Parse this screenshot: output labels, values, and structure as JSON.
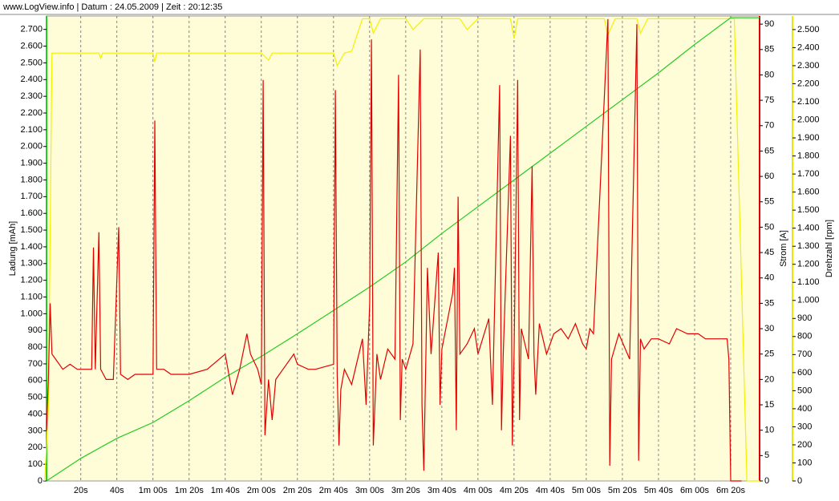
{
  "chart_data": {
    "type": "line",
    "header": "www.LogView.info   |   Datum : 24.05.2009   |   Zeit : 20:12:35",
    "ylabel": "Ladung [mAh]",
    "y2label": "Strom [A]",
    "y3label": "Drehzahl [rpm]",
    "background": "#fffcd8",
    "xlim": [
      1,
      396
    ],
    "xticks": [
      {
        "value": 20,
        "label": "20s"
      },
      {
        "value": 40,
        "label": "40s"
      },
      {
        "value": 60,
        "label": "1m 00s"
      },
      {
        "value": 80,
        "label": "1m 20s"
      },
      {
        "value": 100,
        "label": "1m 40s"
      },
      {
        "value": 120,
        "label": "2m 00s"
      },
      {
        "value": 140,
        "label": "2m 20s"
      },
      {
        "value": 160,
        "label": "2m 40s"
      },
      {
        "value": 180,
        "label": "3m 00s"
      },
      {
        "value": 200,
        "label": "3m 20s"
      },
      {
        "value": 220,
        "label": "3m 40s"
      },
      {
        "value": 240,
        "label": "4m 00s"
      },
      {
        "value": 260,
        "label": "4m 20s"
      },
      {
        "value": 280,
        "label": "4m 40s"
      },
      {
        "value": 300,
        "label": "5m 00s"
      },
      {
        "value": 320,
        "label": "5m 20s"
      },
      {
        "value": 340,
        "label": "5m 40s"
      },
      {
        "value": 360,
        "label": "6m 00s"
      },
      {
        "value": 380,
        "label": "6m 20s"
      }
    ],
    "grid": true,
    "ylim": [
      0,
      2780
    ],
    "yticks": [
      0,
      100,
      200,
      300,
      400,
      500,
      600,
      700,
      800,
      900,
      {
        "value": 1000,
        "label": "1.000"
      },
      {
        "value": 1100,
        "label": "1.100"
      },
      {
        "value": 1200,
        "label": "1.200"
      },
      {
        "value": 1300,
        "label": "1.300"
      },
      {
        "value": 1400,
        "label": "1.400"
      },
      {
        "value": 1500,
        "label": "1.500"
      },
      {
        "value": 1600,
        "label": "1.600"
      },
      {
        "value": 1700,
        "label": "1.700"
      },
      {
        "value": 1800,
        "label": "1.800"
      },
      {
        "value": 1900,
        "label": "1.900"
      },
      {
        "value": 2000,
        "label": "2.000"
      },
      {
        "value": 2100,
        "label": "2.100"
      },
      {
        "value": 2200,
        "label": "2.200"
      },
      {
        "value": 2300,
        "label": "2.300"
      },
      {
        "value": 2400,
        "label": "2.400"
      },
      {
        "value": 2500,
        "label": "2.500"
      },
      {
        "value": 2600,
        "label": "2.600"
      },
      {
        "value": 2700,
        "label": "2.700"
      }
    ],
    "y2lim": [
      0,
      91.6
    ],
    "y2ticks": [
      0,
      5,
      10,
      15,
      20,
      25,
      30,
      35,
      40,
      45,
      50,
      55,
      60,
      65,
      70,
      75,
      80,
      85,
      90
    ],
    "y3lim": [
      0,
      2575
    ],
    "y3ticks": [
      0,
      100,
      200,
      300,
      400,
      500,
      600,
      700,
      800,
      900,
      {
        "value": 1000,
        "label": "1.000"
      },
      {
        "value": 1100,
        "label": "1.100"
      },
      {
        "value": 1200,
        "label": "1.200"
      },
      {
        "value": 1300,
        "label": "1.300"
      },
      {
        "value": 1400,
        "label": "1.400"
      },
      {
        "value": 1500,
        "label": "1.500"
      },
      {
        "value": 1600,
        "label": "1.600"
      },
      {
        "value": 1700,
        "label": "1.700"
      },
      {
        "value": 1800,
        "label": "1.800"
      },
      {
        "value": 1900,
        "label": "1.900"
      },
      {
        "value": 2000,
        "label": "2.000"
      },
      {
        "value": 2100,
        "label": "2.100"
      },
      {
        "value": 2200,
        "label": "2.200"
      },
      {
        "value": 2300,
        "label": "2.300"
      },
      {
        "value": 2400,
        "label": "2.400"
      },
      {
        "value": 2500,
        "label": "2.500"
      }
    ],
    "axis_colors": {
      "y": "#22cc22",
      "y2": "#e00000",
      "y3": "#e8e800"
    },
    "series": [
      {
        "axis": "y3",
        "color": "#f2f200",
        "x": [
          0,
          2,
          4,
          30,
          31,
          32,
          60,
          61,
          62,
          120,
          124,
          126,
          160,
          162,
          166,
          170,
          176,
          180,
          182,
          186,
          200,
          204,
          210,
          230,
          234,
          240,
          258,
          260,
          262,
          270,
          310,
          312,
          316,
          328,
          330,
          334,
          382,
          389,
          396
        ],
        "values": [
          0,
          400,
          2370,
          2370,
          2340,
          2370,
          2370,
          2320,
          2370,
          2370,
          2330,
          2370,
          2370,
          2300,
          2370,
          2380,
          2560,
          2560,
          2480,
          2560,
          2560,
          2500,
          2560,
          2560,
          2500,
          2560,
          2560,
          2450,
          2560,
          2560,
          2560,
          2470,
          2560,
          2560,
          2480,
          2560,
          2560,
          0,
          0
        ]
      },
      {
        "axis": "y",
        "color": "#22cc22",
        "x": [
          1,
          20,
          40,
          60,
          80,
          100,
          120,
          140,
          160,
          180,
          200,
          220,
          240,
          260,
          280,
          300,
          320,
          340,
          360,
          380,
          396
        ],
        "values": [
          0,
          135,
          255,
          350,
          480,
          620,
          745,
          880,
          1020,
          1160,
          1310,
          1480,
          1640,
          1800,
          1960,
          2120,
          2280,
          2440,
          2610,
          2770,
          2770
        ]
      },
      {
        "axis": "y2",
        "color": "#e00000",
        "x": [
          1,
          2,
          3,
          4,
          6,
          10,
          14,
          18,
          22,
          26,
          27,
          28,
          30,
          31,
          34,
          38,
          41,
          42,
          46,
          50,
          60,
          61,
          62,
          66,
          70,
          80,
          90,
          100,
          104,
          108,
          112,
          114,
          118,
          120,
          121,
          122,
          124,
          126,
          128,
          132,
          138,
          140,
          146,
          150,
          160,
          161,
          162,
          163,
          164,
          166,
          170,
          176,
          178,
          180,
          181,
          182,
          184,
          186,
          190,
          194,
          196,
          197,
          198,
          200,
          204,
          208,
          209,
          210,
          212,
          214,
          218,
          219,
          220,
          226,
          227,
          228,
          229,
          230,
          234,
          238,
          240,
          246,
          248,
          252,
          253,
          254,
          258,
          259,
          260,
          262,
          263,
          264,
          268,
          270,
          271,
          272,
          274,
          278,
          282,
          286,
          290,
          294,
          298,
          300,
          302,
          304,
          312,
          313,
          314,
          318,
          324,
          328,
          329,
          330,
          332,
          336,
          340,
          346,
          350,
          356,
          362,
          366,
          370,
          378,
          379,
          380,
          386
        ],
        "values": [
          10,
          20,
          35,
          25,
          24,
          22,
          23,
          22,
          22,
          22,
          46,
          22,
          49,
          22,
          20,
          20,
          50,
          21,
          20,
          21,
          21,
          71,
          22,
          22,
          21,
          21,
          22,
          25,
          17,
          22,
          29,
          25,
          22,
          19,
          79,
          9,
          20,
          12,
          20,
          22,
          25,
          23,
          22,
          22,
          23,
          77,
          21,
          7,
          18,
          22,
          19,
          28,
          15,
          35,
          87,
          7,
          25,
          20,
          26,
          24,
          80,
          12,
          24,
          22,
          27,
          85,
          15,
          2,
          42,
          25,
          45,
          15,
          26,
          37,
          42,
          10,
          56,
          25,
          27,
          30,
          25,
          32,
          15,
          78,
          10,
          25,
          68,
          7,
          25,
          79,
          12,
          30,
          24,
          62,
          25,
          17,
          31,
          25,
          29,
          30,
          28,
          31,
          27,
          26,
          30,
          29,
          91,
          3,
          24,
          29,
          24,
          90,
          4,
          28,
          26,
          28,
          28,
          27,
          30,
          29,
          29,
          28,
          28,
          28,
          24,
          0,
          0
        ]
      }
    ]
  }
}
